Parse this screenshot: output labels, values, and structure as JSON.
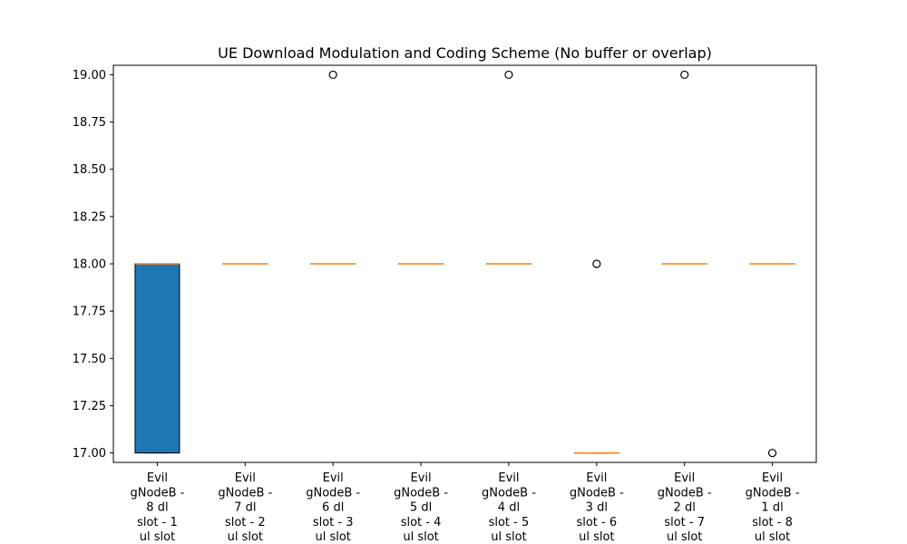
{
  "chart_data": {
    "type": "box",
    "title": "UE Download Modulation and Coding Scheme (No buffer or overlap)",
    "xlabel": "",
    "ylabel": "",
    "ylim": [
      16.95,
      19.05
    ],
    "yticks": [
      "17.00",
      "17.25",
      "17.50",
      "17.75",
      "18.00",
      "18.25",
      "18.50",
      "18.75",
      "19.00"
    ],
    "grid": false,
    "colors": {
      "box_fill": "#1f77b4",
      "median": "#ff7f0e",
      "outline": "#000000"
    },
    "categories": [
      [
        "Evil",
        "gNodeB -",
        "8 dl",
        "slot - 1",
        "ul slot"
      ],
      [
        "Evil",
        "gNodeB -",
        "7 dl",
        "slot - 2",
        "ul slot"
      ],
      [
        "Evil",
        "gNodeB -",
        "6 dl",
        "slot - 3",
        "ul slot"
      ],
      [
        "Evil",
        "gNodeB -",
        "5 dl",
        "slot - 4",
        "ul slot"
      ],
      [
        "Evil",
        "gNodeB -",
        "4 dl",
        "slot - 5",
        "ul slot"
      ],
      [
        "Evil",
        "gNodeB -",
        "3 dl",
        "slot - 6",
        "ul slot"
      ],
      [
        "Evil",
        "gNodeB -",
        "2 dl",
        "slot - 7",
        "ul slot"
      ],
      [
        "Evil",
        "gNodeB -",
        "1 dl",
        "slot - 8",
        "ul slot"
      ]
    ],
    "boxes": [
      {
        "q1": 17.0,
        "median": 18.0,
        "q3": 18.0,
        "whisker_low": 17.0,
        "whisker_high": 18.0,
        "outliers": []
      },
      {
        "q1": 18.0,
        "median": 18.0,
        "q3": 18.0,
        "whisker_low": 18.0,
        "whisker_high": 18.0,
        "outliers": []
      },
      {
        "q1": 18.0,
        "median": 18.0,
        "q3": 18.0,
        "whisker_low": 18.0,
        "whisker_high": 18.0,
        "outliers": [
          19.0
        ]
      },
      {
        "q1": 18.0,
        "median": 18.0,
        "q3": 18.0,
        "whisker_low": 18.0,
        "whisker_high": 18.0,
        "outliers": []
      },
      {
        "q1": 18.0,
        "median": 18.0,
        "q3": 18.0,
        "whisker_low": 18.0,
        "whisker_high": 18.0,
        "outliers": [
          19.0
        ]
      },
      {
        "q1": 17.0,
        "median": 17.0,
        "q3": 17.0,
        "whisker_low": 17.0,
        "whisker_high": 17.0,
        "outliers": [
          18.0
        ]
      },
      {
        "q1": 18.0,
        "median": 18.0,
        "q3": 18.0,
        "whisker_low": 18.0,
        "whisker_high": 18.0,
        "outliers": [
          19.0
        ]
      },
      {
        "q1": 18.0,
        "median": 18.0,
        "q3": 18.0,
        "whisker_low": 18.0,
        "whisker_high": 18.0,
        "outliers": [
          17.0
        ]
      }
    ]
  }
}
